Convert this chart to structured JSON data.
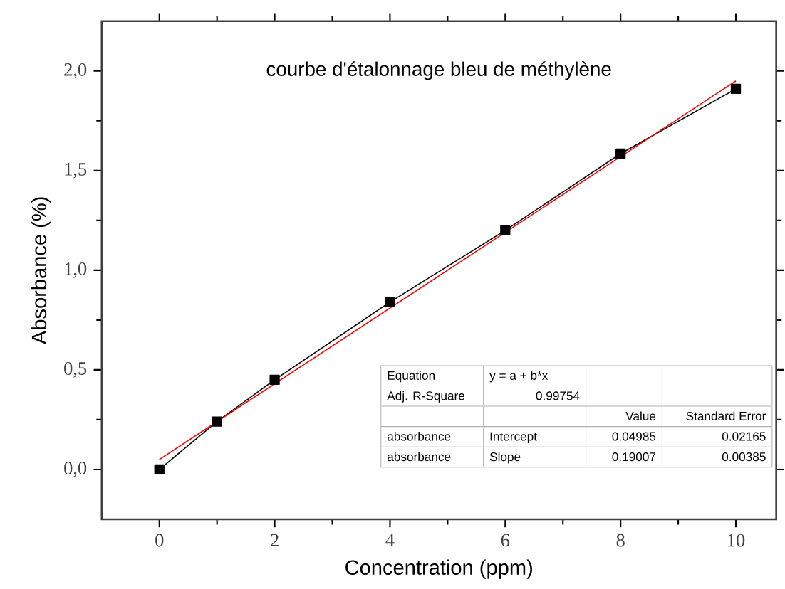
{
  "chart_data": {
    "type": "line",
    "title": "courbe d'étalonnage bleu de méthylène",
    "xlabel": "Concentration (ppm)",
    "ylabel": "Absorbance (%)",
    "series": [
      {
        "color": "#000000",
        "marker": "square",
        "x": [
          0,
          1,
          2,
          4,
          6,
          8,
          10
        ],
        "values": [
          0.0,
          0.24,
          0.45,
          0.84,
          1.2,
          1.585,
          1.91
        ]
      },
      {
        "color": "#ff0000",
        "marker": "none",
        "x": [
          0,
          10
        ],
        "values": [
          0.05,
          1.95
        ]
      }
    ],
    "xlim": [
      -1,
      10.7
    ],
    "ylim": [
      -0.25,
      2.25
    ],
    "xticks": [
      0,
      2,
      4,
      6,
      8,
      10
    ],
    "yticks": [
      {
        "value": 0,
        "label": "0,0"
      },
      {
        "value": 0.5,
        "label": "0,5"
      },
      {
        "value": 1,
        "label": "1,0"
      },
      {
        "value": 1.5,
        "label": "1,5"
      },
      {
        "value": 2,
        "label": "2,0"
      }
    ],
    "grid": false,
    "annotations": [
      "Equation",
      "y = a + b*x",
      "Adj. R-Square",
      "0.99754",
      "Value",
      "Standard Error",
      "absorbance",
      "Intercept",
      "0.04985",
      "0.02165",
      "absorbance",
      "Slope",
      "0.19007",
      "0.00385"
    ]
  }
}
